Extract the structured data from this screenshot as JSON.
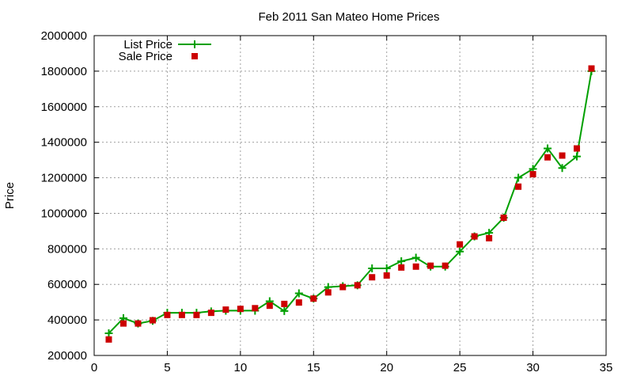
{
  "chart_data": {
    "type": "line",
    "title": "Feb 2011 San Mateo Home Prices",
    "xlabel": "",
    "ylabel": "Price",
    "xlim": [
      0,
      35
    ],
    "ylim": [
      200000,
      2000000
    ],
    "xticks": [
      0,
      5,
      10,
      15,
      20,
      25,
      30,
      35
    ],
    "yticks": [
      200000,
      400000,
      600000,
      800000,
      1000000,
      1200000,
      1400000,
      1600000,
      1800000,
      2000000
    ],
    "grid": true,
    "legend_position": "top-left",
    "x": [
      1,
      2,
      3,
      4,
      5,
      6,
      7,
      8,
      9,
      10,
      11,
      12,
      13,
      14,
      15,
      16,
      17,
      18,
      19,
      20,
      21,
      22,
      23,
      24,
      25,
      26,
      27,
      28,
      29,
      30,
      31,
      32,
      33,
      34
    ],
    "series": [
      {
        "name": "List Price",
        "style": "line-plus",
        "color": "#00a000",
        "values": [
          325000,
          410000,
          380000,
          395000,
          440000,
          440000,
          440000,
          448000,
          452000,
          452000,
          452000,
          505000,
          450000,
          550000,
          520000,
          585000,
          590000,
          595000,
          690000,
          690000,
          730000,
          750000,
          700000,
          700000,
          785000,
          870000,
          890000,
          975000,
          1200000,
          1250000,
          1365000,
          1255000,
          1320000,
          1800000
        ]
      },
      {
        "name": "Sale Price",
        "style": "square",
        "color": "#cc0000",
        "values": [
          290000,
          380000,
          380000,
          398000,
          428000,
          428000,
          428000,
          440000,
          458000,
          462000,
          466000,
          480000,
          490000,
          498000,
          520000,
          555000,
          585000,
          595000,
          640000,
          650000,
          695000,
          700000,
          705000,
          705000,
          825000,
          870000,
          860000,
          975000,
          1150000,
          1220000,
          1315000,
          1325000,
          1365000,
          1815000
        ]
      }
    ]
  }
}
